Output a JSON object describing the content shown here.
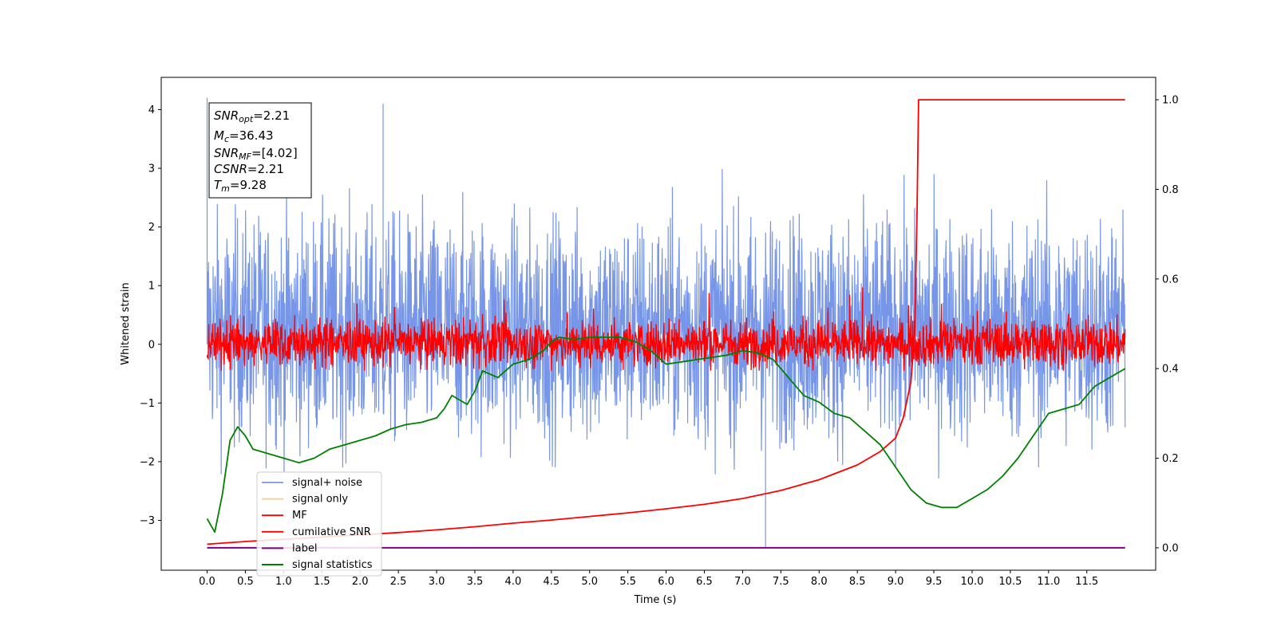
{
  "chart_data": {
    "type": "line",
    "xlabel": "Time (s)",
    "ylabel": "Whitened strain",
    "xlim": [
      -0.6,
      12.4
    ],
    "ylim": [
      -3.85,
      4.55
    ],
    "ylim_right": [
      -0.05,
      1.05
    ],
    "x_ticks": [
      "0.0",
      "0.5",
      "1.0",
      "1.5",
      "2.0",
      "2.5",
      "3.0",
      "3.5",
      "4.0",
      "4.5",
      "5.0",
      "5.5",
      "6.0",
      "6.5",
      "7.0",
      "7.5",
      "8.0",
      "8.5",
      "9.0",
      "9.5",
      "10.0",
      "10.5",
      "11.0",
      "11.5"
    ],
    "y_ticks_left": [
      "−3",
      "−2",
      "−1",
      "0",
      "1",
      "2",
      "3",
      "4"
    ],
    "y_ticks_right": [
      "0.0",
      "0.2",
      "0.4",
      "0.6",
      "0.8",
      "1.0"
    ],
    "grid": false,
    "legend_placement": "lower-left",
    "annotation": {
      "snr_opt": "=2.21",
      "mc": "=36.43",
      "snr_mf": "=[4.02]",
      "csnr": "=2.21",
      "tm": "=9.28"
    },
    "series": [
      {
        "name": "signal+ noise",
        "color": "#7090e6",
        "axis": "left",
        "x_range": [
          0,
          12
        ],
        "envelope": [
          -2.6,
          3.3
        ],
        "notable_peaks": [
          {
            "x": 0.0,
            "y": 4.2
          },
          {
            "x": 2.3,
            "y": 4.1
          },
          {
            "x": 7.3,
            "y": -3.45
          }
        ]
      },
      {
        "name": "signal only",
        "color": "#f8c870",
        "axis": "left",
        "values": []
      },
      {
        "name": "MF",
        "color": "#ff0000",
        "axis": "left",
        "x_range": [
          0,
          12
        ],
        "envelope": [
          -0.45,
          1.0
        ]
      },
      {
        "name": "cumilative SNR",
        "color": "#ff0000",
        "axis": "right",
        "x": [
          0,
          0.5,
          1,
          1.5,
          2,
          2.5,
          3,
          3.5,
          4,
          4.5,
          5,
          5.5,
          6,
          6.5,
          7,
          7.5,
          8,
          8.5,
          8.8,
          9.0,
          9.1,
          9.2,
          9.25,
          9.28,
          9.3,
          12.0
        ],
        "values": [
          0.008,
          0.014,
          0.019,
          0.024,
          0.029,
          0.034,
          0.04,
          0.047,
          0.055,
          0.062,
          0.07,
          0.078,
          0.087,
          0.097,
          0.11,
          0.128,
          0.152,
          0.185,
          0.215,
          0.245,
          0.29,
          0.37,
          0.48,
          0.75,
          1.0,
          1.0
        ]
      },
      {
        "name": "label",
        "color": "#800080",
        "axis": "right",
        "x": [
          0,
          12
        ],
        "values": [
          0.0,
          0.0
        ]
      },
      {
        "name": "signal statistics",
        "color": "#008000",
        "axis": "right",
        "x": [
          0,
          0.1,
          0.2,
          0.3,
          0.4,
          0.5,
          0.6,
          0.8,
          1.0,
          1.2,
          1.4,
          1.6,
          1.8,
          2.0,
          2.2,
          2.4,
          2.6,
          2.8,
          3.0,
          3.1,
          3.2,
          3.4,
          3.5,
          3.6,
          3.8,
          4.0,
          4.2,
          4.4,
          4.5,
          4.6,
          4.8,
          5.0,
          5.2,
          5.4,
          5.6,
          5.8,
          6.0,
          6.2,
          6.4,
          6.6,
          6.8,
          7.0,
          7.2,
          7.4,
          7.6,
          7.8,
          8.0,
          8.2,
          8.4,
          8.6,
          8.8,
          9.0,
          9.2,
          9.4,
          9.6,
          9.8,
          10.0,
          10.2,
          10.4,
          10.6,
          10.8,
          11.0,
          11.2,
          11.4,
          11.6,
          11.8,
          12.0
        ],
        "values": [
          0.065,
          0.035,
          0.12,
          0.24,
          0.27,
          0.25,
          0.22,
          0.21,
          0.2,
          0.19,
          0.2,
          0.22,
          0.23,
          0.24,
          0.25,
          0.265,
          0.275,
          0.28,
          0.29,
          0.31,
          0.34,
          0.32,
          0.35,
          0.395,
          0.38,
          0.41,
          0.42,
          0.44,
          0.46,
          0.47,
          0.465,
          0.47,
          0.47,
          0.47,
          0.46,
          0.44,
          0.41,
          0.415,
          0.42,
          0.425,
          0.43,
          0.44,
          0.435,
          0.42,
          0.38,
          0.34,
          0.325,
          0.3,
          0.29,
          0.26,
          0.23,
          0.18,
          0.13,
          0.1,
          0.09,
          0.09,
          0.11,
          0.13,
          0.16,
          0.2,
          0.25,
          0.3,
          0.31,
          0.32,
          0.36,
          0.38,
          0.4
        ]
      }
    ]
  }
}
